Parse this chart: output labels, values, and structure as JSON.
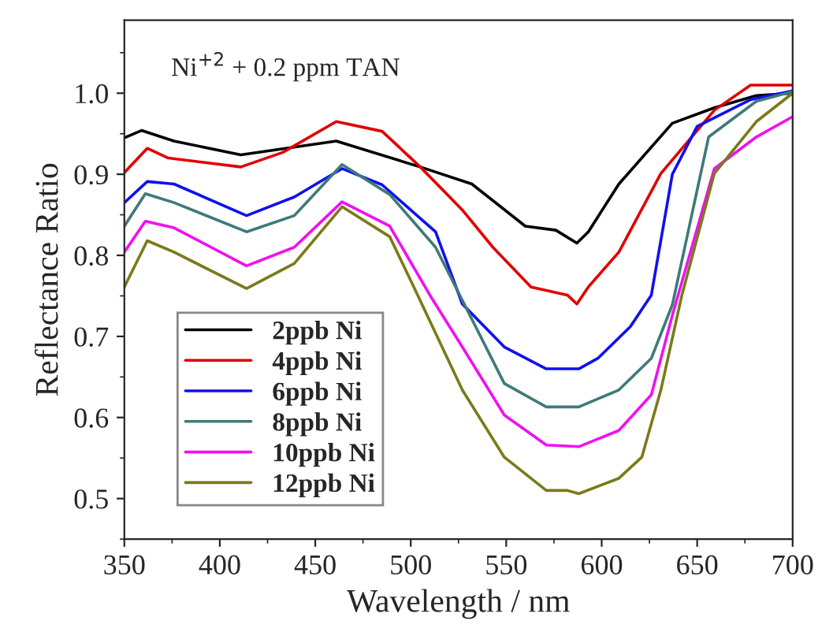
{
  "chart_data": {
    "type": "line",
    "xlabel": "Wavelength / nm",
    "ylabel": "Reflectance Ratio",
    "annotations": [
      "Ni$^{+2}$ + 0.2 ppm TAN"
    ],
    "xlim": [
      350,
      700
    ],
    "xticks": [
      350,
      400,
      450,
      500,
      550,
      600,
      650,
      700
    ],
    "ylim": [
      0.45,
      1.09
    ],
    "yticks": [
      0.5,
      0.6,
      0.7,
      0.8,
      0.9,
      {
        "value": 1,
        "label": "1.0"
      }
    ],
    "legend": "bottom left",
    "grid": false,
    "marker": "none",
    "line_style": "solid",
    "series": [
      {
        "name": "2ppb Ni",
        "color": "#000000",
        "x": [
          350,
          359,
          376,
          411,
          461,
          505,
          532,
          560,
          576,
          587,
          593,
          609,
          637,
          659,
          681,
          700
        ],
        "values": [
          0.945,
          0.954,
          0.941,
          0.924,
          0.941,
          0.909,
          0.888,
          0.836,
          0.831,
          0.815,
          0.829,
          0.888,
          0.963,
          0.982,
          0.997,
          1.0
        ]
      },
      {
        "name": "4ppb Ni",
        "color": "#e00000",
        "x": [
          350,
          362,
          373,
          411,
          433,
          461,
          485,
          505,
          527,
          543,
          563,
          582,
          587,
          593,
          609,
          631,
          659,
          678,
          700
        ],
        "values": [
          0.902,
          0.932,
          0.92,
          0.909,
          0.927,
          0.965,
          0.953,
          0.909,
          0.856,
          0.81,
          0.761,
          0.751,
          0.74,
          0.761,
          0.804,
          0.901,
          0.979,
          1.01,
          1.01
        ]
      },
      {
        "name": "6ppb Ni",
        "color": "#1010f0",
        "x": [
          350,
          362,
          376,
          414,
          439,
          464,
          485,
          513,
          527,
          549,
          571,
          588,
          598,
          615,
          626,
          637,
          650,
          678,
          700
        ],
        "values": [
          0.865,
          0.891,
          0.888,
          0.849,
          0.872,
          0.907,
          0.887,
          0.829,
          0.74,
          0.687,
          0.66,
          0.66,
          0.673,
          0.712,
          0.751,
          0.9,
          0.959,
          0.992,
          1.003
        ]
      },
      {
        "name": "8ppb Ni",
        "color": "#3f7a78",
        "x": [
          350,
          361,
          376,
          414,
          439,
          464,
          489,
          513,
          549,
          571,
          588,
          609,
          626,
          637,
          656,
          681,
          700
        ],
        "values": [
          0.836,
          0.876,
          0.865,
          0.829,
          0.849,
          0.912,
          0.875,
          0.81,
          0.642,
          0.613,
          0.613,
          0.634,
          0.673,
          0.739,
          0.946,
          0.99,
          1.002
        ]
      },
      {
        "name": "10ppb Ni",
        "color": "#f010f0",
        "x": [
          350,
          361,
          376,
          414,
          439,
          464,
          489,
          510,
          527,
          549,
          571,
          588,
          609,
          626,
          637,
          659,
          681,
          700
        ],
        "values": [
          0.804,
          0.842,
          0.834,
          0.787,
          0.81,
          0.866,
          0.836,
          0.751,
          0.687,
          0.603,
          0.566,
          0.564,
          0.584,
          0.628,
          0.726,
          0.907,
          0.946,
          0.971
        ]
      },
      {
        "name": "12ppb Ni",
        "color": "#7a7a1a",
        "x": [
          350,
          362,
          376,
          414,
          439,
          464,
          489,
          502,
          527,
          549,
          571,
          582,
          588,
          609,
          621,
          631,
          642,
          659,
          681,
          700
        ],
        "values": [
          0.761,
          0.818,
          0.804,
          0.759,
          0.79,
          0.86,
          0.823,
          0.759,
          0.634,
          0.551,
          0.51,
          0.51,
          0.506,
          0.525,
          0.551,
          0.634,
          0.751,
          0.901,
          0.965,
          1.0
        ]
      }
    ]
  }
}
